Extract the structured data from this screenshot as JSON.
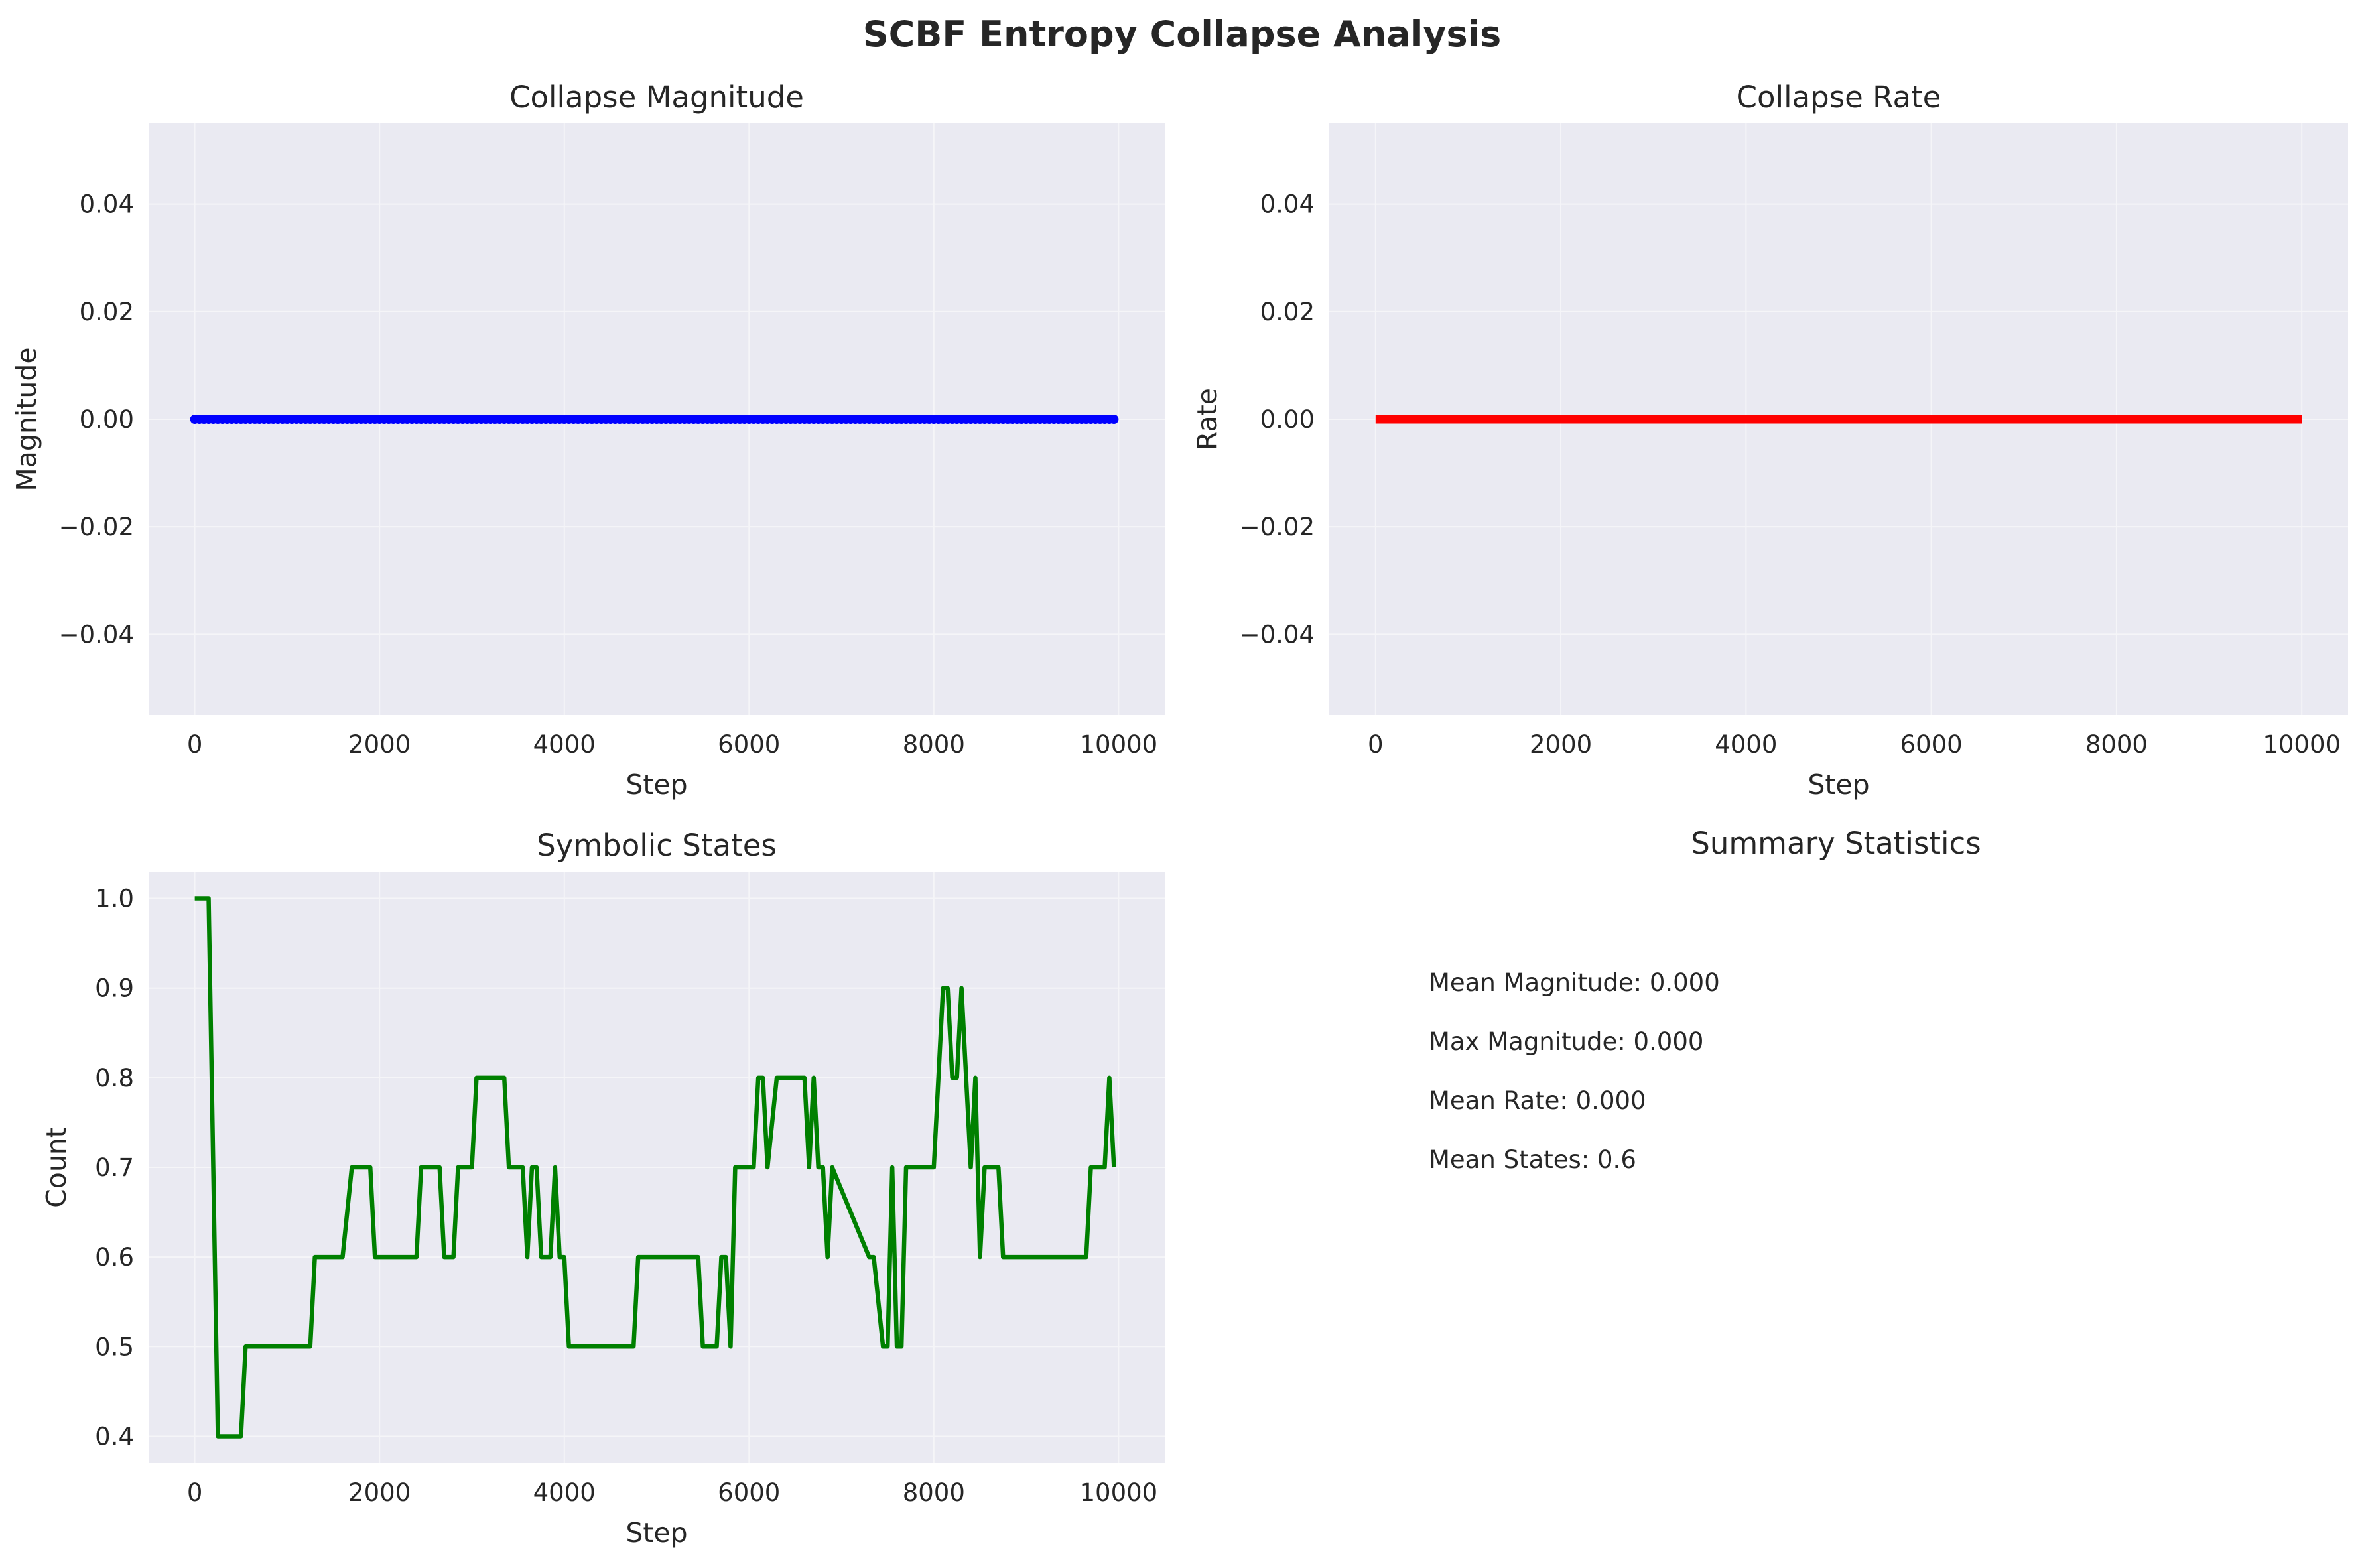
{
  "title": "SCBF Entropy Collapse Analysis",
  "colors": {
    "panel_bg": "#EAEAF2",
    "grid": "#F5F5F8",
    "text": "#262626"
  },
  "charts": {
    "magnitude": {
      "title": "Collapse Magnitude",
      "xlabel": "Step",
      "ylabel": "Magnitude",
      "xticks": [
        "0",
        "2000",
        "4000",
        "6000",
        "8000",
        "10000"
      ],
      "yticks": [
        "−0.04",
        "−0.02",
        "0.00",
        "0.02",
        "0.04"
      ]
    },
    "rate": {
      "title": "Collapse Rate",
      "xlabel": "Step",
      "ylabel": "Rate",
      "xticks": [
        "0",
        "2000",
        "4000",
        "6000",
        "8000",
        "10000"
      ],
      "yticks": [
        "−0.04",
        "−0.02",
        "0.00",
        "0.02",
        "0.04"
      ]
    },
    "states": {
      "title": "Symbolic States",
      "xlabel": "Step",
      "ylabel": "Count",
      "xticks": [
        "0",
        "2000",
        "4000",
        "6000",
        "8000",
        "10000"
      ],
      "yticks": [
        "0.4",
        "0.5",
        "0.6",
        "0.7",
        "0.8",
        "0.9",
        "1.0"
      ]
    }
  },
  "summary": {
    "title": "Summary Statistics",
    "lines": [
      "Mean Magnitude: 0.000",
      "Max Magnitude: 0.000",
      "Mean Rate: 0.000",
      "Mean States: 0.6"
    ]
  },
  "chart_data": [
    {
      "type": "scatter",
      "title": "Collapse Magnitude",
      "xlabel": "Step",
      "ylabel": "Magnitude",
      "xlim": [
        -500,
        10500
      ],
      "ylim": [
        -0.055,
        0.055
      ],
      "grid": true,
      "color": "#0000FF",
      "x_range": [
        0,
        9950
      ],
      "x_step": 50,
      "y_constant": 0.0
    },
    {
      "type": "line",
      "title": "Collapse Rate",
      "xlabel": "Step",
      "ylabel": "Rate",
      "xlim": [
        -500,
        10500
      ],
      "ylim": [
        -0.055,
        0.055
      ],
      "grid": true,
      "color": "#FF0000",
      "x": [
        0,
        10000
      ],
      "y": [
        0.0,
        0.0
      ]
    },
    {
      "type": "line",
      "title": "Symbolic States",
      "xlabel": "Step",
      "ylabel": "Count",
      "xlim": [
        -500,
        10500
      ],
      "ylim": [
        0.37,
        1.03
      ],
      "grid": true,
      "color": "#008000",
      "x": [
        0,
        150,
        250,
        500,
        550,
        1250,
        1300,
        1600,
        1700,
        1900,
        1950,
        2400,
        2450,
        2650,
        2700,
        2800,
        2850,
        3000,
        3050,
        3350,
        3400,
        3550,
        3600,
        3650,
        3700,
        3750,
        3800,
        3850,
        3900,
        3950,
        4000,
        4050,
        4750,
        4800,
        5450,
        5500,
        5650,
        5700,
        5750,
        5800,
        5850,
        6050,
        6100,
        6150,
        6200,
        6300,
        6550,
        6600,
        6650,
        6700,
        6750,
        6800,
        6850,
        6900,
        7300,
        7350,
        7450,
        7500,
        7550,
        7600,
        7650,
        7700,
        8000,
        8050,
        8100,
        8150,
        8200,
        8250,
        8300,
        8350,
        8400,
        8450,
        8500,
        8550,
        8700,
        8750,
        9650,
        9700,
        9850,
        9900,
        9950
      ],
      "y": [
        1.0,
        1.0,
        0.4,
        0.4,
        0.5,
        0.5,
        0.6,
        0.6,
        0.7,
        0.7,
        0.6,
        0.6,
        0.7,
        0.7,
        0.6,
        0.6,
        0.7,
        0.7,
        0.8,
        0.8,
        0.7,
        0.7,
        0.6,
        0.7,
        0.7,
        0.6,
        0.6,
        0.6,
        0.7,
        0.6,
        0.6,
        0.5,
        0.5,
        0.6,
        0.6,
        0.5,
        0.5,
        0.6,
        0.6,
        0.5,
        0.7,
        0.7,
        0.8,
        0.8,
        0.7,
        0.8,
        0.8,
        0.8,
        0.7,
        0.8,
        0.7,
        0.7,
        0.6,
        0.7,
        0.6,
        0.6,
        0.5,
        0.5,
        0.7,
        0.5,
        0.5,
        0.7,
        0.7,
        0.8,
        0.9,
        0.9,
        0.8,
        0.8,
        0.9,
        0.8,
        0.7,
        0.8,
        0.6,
        0.7,
        0.7,
        0.6,
        0.6,
        0.7,
        0.7,
        0.8,
        0.7
      ]
    }
  ]
}
